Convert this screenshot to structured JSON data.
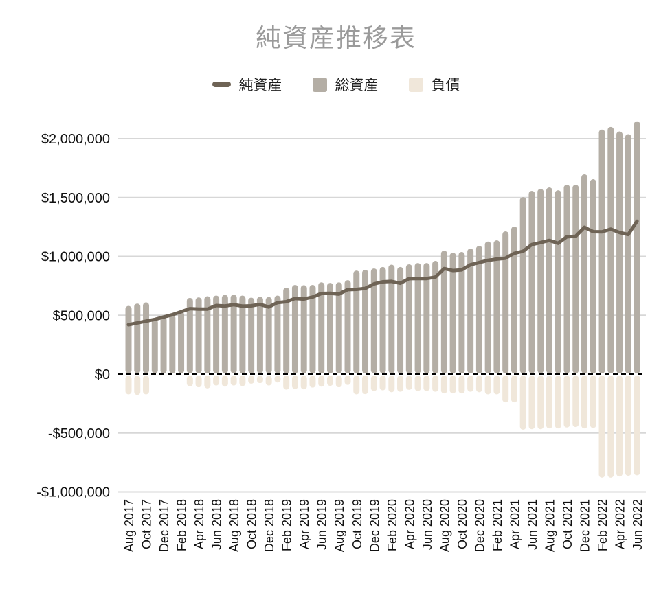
{
  "header": {
    "title": "純資産推移表"
  },
  "legend": [
    {
      "label": "純資産",
      "swatch": "line",
      "color": "#6e6355"
    },
    {
      "label": "総資産",
      "swatch": "square",
      "color": "#b4aea5"
    },
    {
      "label": "負債",
      "swatch": "square",
      "color": "#f0e7da"
    }
  ],
  "colors": {
    "title": "#9a9a9a",
    "gridline": "#d7d7d7",
    "zero_line": "#000000",
    "axis_text": "#111111",
    "background": "#ffffff"
  },
  "chart_data": {
    "type": "bar",
    "subtype": "combo-bar-line",
    "title": "純資産推移表",
    "xlabel": "",
    "ylabel": "",
    "grid": true,
    "zero_line": "dashed",
    "legend_position": "top",
    "x_tick_step": 2,
    "categories": [
      "Aug 2017",
      "Sep 2017",
      "Oct 2017",
      "Nov 2017",
      "Dec 2017",
      "Jan 2018",
      "Feb 2018",
      "Mar 2018",
      "Apr 2018",
      "May 2018",
      "Jun 2018",
      "Jul 2018",
      "Aug 2018",
      "Sep 2018",
      "Oct 2018",
      "Nov 2018",
      "Dec 2018",
      "Jan 2019",
      "Feb 2019",
      "Mar 2019",
      "Apr 2019",
      "May 2019",
      "Jun 2019",
      "Jul 2019",
      "Aug 2019",
      "Sep 2019",
      "Oct 2019",
      "Nov 2019",
      "Dec 2019",
      "Jan 2020",
      "Feb 2020",
      "Mar 2020",
      "Apr 2020",
      "May 2020",
      "Jun 2020",
      "Jul 2020",
      "Aug 2020",
      "Sep 2020",
      "Oct 2020",
      "Nov 2020",
      "Dec 2020",
      "Jan 2021",
      "Feb 2021",
      "Mar 2021",
      "Apr 2021",
      "May 2021",
      "Jun 2021",
      "Jul 2021",
      "Aug 2021",
      "Sep 2021",
      "Oct 2021",
      "Nov 2021",
      "Dec 2021",
      "Jan 2022",
      "Feb 2022",
      "Mar 2022",
      "Apr 2022",
      "May 2022",
      "Jun 2022"
    ],
    "series": [
      {
        "name": "総資産",
        "type": "bar",
        "color": "#b4aea5",
        "values": [
          580000,
          600000,
          610000,
          465000,
          485000,
          505000,
          530000,
          648000,
          652000,
          662000,
          668000,
          674000,
          675000,
          668000,
          650000,
          658000,
          655000,
          668000,
          735000,
          758000,
          756000,
          758000,
          780000,
          775000,
          780000,
          798000,
          880000,
          886000,
          898000,
          910000,
          930000,
          910000,
          933000,
          944000,
          944000,
          962000,
          1049000,
          1032000,
          1038000,
          1067000,
          1090000,
          1127000,
          1137000,
          1213000,
          1254000,
          1504000,
          1557000,
          1574000,
          1586000,
          1562000,
          1609000,
          1609000,
          1697000,
          1656000,
          2077000,
          2100000,
          2061000,
          2038000,
          2147000
        ]
      },
      {
        "name": "負債",
        "type": "bar",
        "color": "#f0e7da",
        "values": [
          -160000,
          -165000,
          -160000,
          0,
          0,
          0,
          0,
          -92000,
          -100000,
          -110000,
          -85000,
          -95000,
          -85000,
          -90000,
          -70000,
          -65000,
          -85000,
          -60000,
          -120000,
          -115000,
          -118000,
          -103000,
          -95000,
          -88000,
          -100000,
          -80000,
          -160000,
          -158000,
          -132000,
          -126000,
          -142000,
          -138000,
          -122000,
          -132000,
          -132000,
          -138000,
          -152000,
          -152000,
          -152000,
          -138000,
          -142000,
          -160000,
          -160000,
          -228000,
          -228000,
          -460000,
          -456000,
          -456000,
          -450000,
          -450000,
          -442000,
          -438000,
          -450000,
          -446000,
          -868000,
          -868000,
          -858000,
          -852000,
          -848000
        ]
      },
      {
        "name": "純資産",
        "type": "line",
        "color": "#6e6355",
        "values": [
          420000,
          435000,
          450000,
          465000,
          485000,
          505000,
          530000,
          556000,
          552000,
          552000,
          583000,
          579000,
          590000,
          578000,
          580000,
          593000,
          570000,
          608000,
          615000,
          643000,
          638000,
          655000,
          685000,
          687000,
          680000,
          718000,
          720000,
          728000,
          766000,
          784000,
          788000,
          772000,
          811000,
          812000,
          812000,
          824000,
          897000,
          880000,
          886000,
          929000,
          948000,
          967000,
          977000,
          985000,
          1026000,
          1044000,
          1101000,
          1118000,
          1136000,
          1112000,
          1167000,
          1171000,
          1247000,
          1210000,
          1209000,
          1232000,
          1203000,
          1186000,
          1299000
        ]
      }
    ],
    "y_axis": {
      "min": -1000000,
      "max": 2000000,
      "tick_interval": 500000,
      "tick_values": [
        2000000,
        1500000,
        1000000,
        500000,
        0,
        -500000,
        -1000000
      ],
      "tick_labels": [
        "$2,000,000",
        "$1,500,000",
        "$1,000,000",
        "$500,000",
        "$0",
        "-$500,000",
        "-$1,000,000"
      ],
      "format": "currency-usd"
    }
  }
}
